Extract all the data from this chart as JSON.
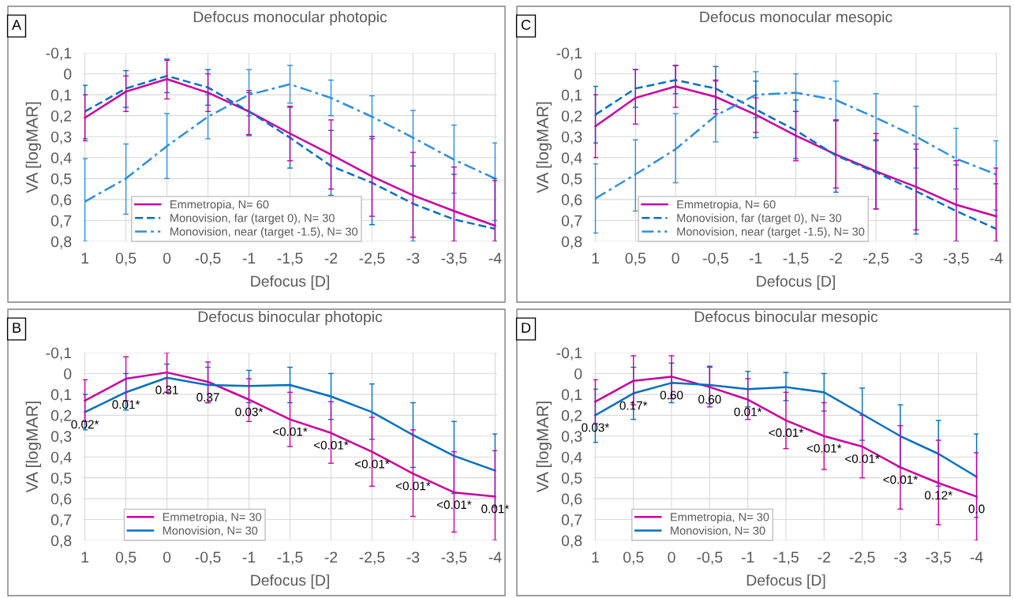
{
  "chart_data": [
    {
      "type": "line",
      "title": "Defocus monocular photopic",
      "xlabel": "Defocus [D]",
      "ylabel": "VA [logMAR]",
      "annotations": [
        "A"
      ],
      "categories": [
        "1",
        "0,5",
        "0",
        "-0,5",
        "-1",
        "-1,5",
        "-2",
        "-2,5",
        "-3",
        "-3,5",
        "-4"
      ],
      "ylim": [
        0.8,
        -0.1
      ],
      "yticks": [
        {
          "value": -0.1,
          "label": "-0,1"
        },
        {
          "value": 0,
          "label": "0"
        },
        {
          "value": 0.1,
          "label": "0,1"
        },
        {
          "value": 0.2,
          "label": "0,2"
        },
        {
          "value": 0.3,
          "label": "0,3"
        },
        {
          "value": 0.4,
          "label": "0,4"
        },
        {
          "value": 0.5,
          "label": "0,5"
        },
        {
          "value": 0.6,
          "label": "0,6"
        },
        {
          "value": 0.7,
          "label": "0,7"
        },
        {
          "value": 0.8,
          "label": "0,8"
        }
      ],
      "grid": true,
      "legend": "bottom",
      "series": [
        {
          "name": "Emmetropia, N= 60",
          "color": "#c800a0",
          "line_style": "solid",
          "values": [
            0.21,
            0.085,
            0.025,
            0.09,
            0.18,
            0.285,
            0.385,
            0.49,
            0.58,
            0.655,
            0.725
          ],
          "errors": [
            [
              0.1,
              0.32
            ],
            [
              0.01,
              0.18
            ],
            [
              -0.065,
              0.12
            ],
            [
              0.0,
              0.18
            ],
            [
              0.08,
              0.29
            ],
            [
              0.155,
              0.415
            ],
            [
              0.22,
              0.55
            ],
            [
              0.3,
              0.68
            ],
            [
              0.375,
              0.78
            ],
            [
              0.445,
              0.8
            ],
            [
              0.51,
              0.8
            ]
          ]
        },
        {
          "name": "Monovision, far (target 0), N= 30",
          "color": "#0070c0",
          "line_style": "dashed",
          "values": [
            0.18,
            0.07,
            0.01,
            0.065,
            0.18,
            0.305,
            0.44,
            0.52,
            0.62,
            0.695,
            0.74
          ],
          "errors": [
            [
              0.055,
              0.31
            ],
            [
              -0.015,
              0.16
            ],
            [
              -0.07,
              0.09
            ],
            [
              -0.02,
              0.15
            ],
            [
              0.09,
              0.295
            ],
            [
              0.16,
              0.45
            ],
            [
              0.27,
              0.58
            ],
            [
              0.31,
              0.72
            ],
            [
              0.44,
              0.8
            ],
            [
              0.48,
              0.8
            ],
            [
              0.5,
              0.8
            ]
          ]
        },
        {
          "name": "Monovision, near (target -1.5), N= 30",
          "color": "#2f8fdc",
          "line_style": "dashdot",
          "values": [
            0.61,
            0.5,
            0.345,
            0.205,
            0.1,
            0.05,
            0.115,
            0.205,
            0.305,
            0.41,
            0.5
          ],
          "errors": [
            [
              0.405,
              0.8
            ],
            [
              0.335,
              0.67
            ],
            [
              0.19,
              0.5
            ],
            [
              0.1,
              0.31
            ],
            [
              -0.02,
              0.2
            ],
            [
              -0.04,
              0.14
            ],
            [
              0.03,
              0.2
            ],
            [
              0.105,
              0.3
            ],
            [
              0.175,
              0.44
            ],
            [
              0.245,
              0.57
            ],
            [
              0.33,
              0.7
            ]
          ]
        }
      ]
    },
    {
      "type": "line",
      "title": "Defocus monocular mesopic",
      "xlabel": "Defocus [D]",
      "ylabel": "VA [logMAR]",
      "annotations": [
        "C"
      ],
      "categories": [
        "1",
        "0,5",
        "0",
        "-0,5",
        "-1",
        "-1,5",
        "-2",
        "-2,5",
        "-3",
        "-3,5",
        "-4"
      ],
      "ylim": [
        0.8,
        -0.1
      ],
      "yticks": [
        {
          "value": -0.1,
          "label": "-0,1"
        },
        {
          "value": 0,
          "label": "0"
        },
        {
          "value": 0.1,
          "label": "0,1"
        },
        {
          "value": 0.2,
          "label": "0,2"
        },
        {
          "value": 0.3,
          "label": "0,3"
        },
        {
          "value": 0.4,
          "label": "0,4"
        },
        {
          "value": 0.5,
          "label": "0,5"
        },
        {
          "value": 0.6,
          "label": "0,6"
        },
        {
          "value": 0.7,
          "label": "0,7"
        },
        {
          "value": 0.8,
          "label": "0,8"
        }
      ],
      "grid": true,
      "legend": "bottom",
      "series": [
        {
          "name": "Emmetropia, N= 60",
          "color": "#c800a0",
          "line_style": "solid",
          "values": [
            0.25,
            0.115,
            0.06,
            0.11,
            0.195,
            0.295,
            0.385,
            0.465,
            0.54,
            0.625,
            0.68
          ],
          "errors": [
            [
              0.1,
              0.4
            ],
            [
              -0.02,
              0.24
            ],
            [
              -0.04,
              0.16
            ],
            [
              0.03,
              0.19
            ],
            [
              0.115,
              0.28
            ],
            [
              0.18,
              0.415
            ],
            [
              0.22,
              0.545
            ],
            [
              0.285,
              0.645
            ],
            [
              0.335,
              0.745
            ],
            [
              0.415,
              0.8
            ],
            [
              0.45,
              0.8
            ]
          ]
        },
        {
          "name": "Monovision, far (target 0), N= 30",
          "color": "#0070c0",
          "line_style": "dashed",
          "values": [
            0.195,
            0.07,
            0.03,
            0.07,
            0.17,
            0.27,
            0.39,
            0.47,
            0.56,
            0.655,
            0.74
          ],
          "errors": [
            [
              0.06,
              0.33
            ],
            [
              -0.02,
              0.16
            ],
            [
              -0.04,
              0.095
            ],
            [
              -0.035,
              0.17
            ],
            [
              0.035,
              0.305
            ],
            [
              0.125,
              0.405
            ],
            [
              0.225,
              0.565
            ],
            [
              0.315,
              0.645
            ],
            [
              0.36,
              0.765
            ],
            [
              0.435,
              0.8
            ],
            [
              0.525,
              0.8
            ]
          ]
        },
        {
          "name": "Monovision, near (target -1.5), N= 30",
          "color": "#2f8fdc",
          "line_style": "dashdot",
          "values": [
            0.595,
            0.48,
            0.36,
            0.2,
            0.1,
            0.09,
            0.125,
            0.21,
            0.3,
            0.405,
            0.48
          ],
          "errors": [
            [
              0.43,
              0.76
            ],
            [
              0.315,
              0.655
            ],
            [
              0.19,
              0.52
            ],
            [
              0.035,
              0.325
            ],
            [
              -0.01,
              0.21
            ],
            [
              0.0,
              0.18
            ],
            [
              0.035,
              0.22
            ],
            [
              0.095,
              0.32
            ],
            [
              0.155,
              0.45
            ],
            [
              0.26,
              0.55
            ],
            [
              0.32,
              0.65
            ]
          ]
        }
      ]
    },
    {
      "type": "line",
      "title": "Defocus binocular photopic",
      "xlabel": "Defocus [D]",
      "ylabel": "VA [logMAR]",
      "annotations": [
        "B",
        {
          "text": "0.02*",
          "x": "1"
        },
        {
          "text": "0.01*",
          "x": "0,5"
        },
        {
          "text": "0.31",
          "x": "0"
        },
        {
          "text": "0.37",
          "x": "-0,5"
        },
        {
          "text": "0.03*",
          "x": "-1"
        },
        {
          "text": "<0.01*",
          "x": "-1,5"
        },
        {
          "text": "<0.01*",
          "x": "-2"
        },
        {
          "text": "<0.01*",
          "x": "-2,5"
        },
        {
          "text": "<0.01*",
          "x": "-3"
        },
        {
          "text": "<0.01*",
          "x": "-3,5"
        },
        {
          "text": "0.01*",
          "x": "-4"
        }
      ],
      "categories": [
        "1",
        "0,5",
        "0",
        "-0,5",
        "-1",
        "-1,5",
        "-2",
        "-2,5",
        "-3",
        "-3,5",
        "-4"
      ],
      "ylim": [
        0.8,
        -0.1
      ],
      "yticks": [
        {
          "value": -0.1,
          "label": "-0,1"
        },
        {
          "value": 0,
          "label": "0"
        },
        {
          "value": 0.1,
          "label": "0,1"
        },
        {
          "value": 0.2,
          "label": "0,2"
        },
        {
          "value": 0.3,
          "label": "0,3"
        },
        {
          "value": 0.4,
          "label": "0,4"
        },
        {
          "value": 0.5,
          "label": "0,5"
        },
        {
          "value": 0.6,
          "label": "0,6"
        },
        {
          "value": 0.7,
          "label": "0,7"
        },
        {
          "value": 0.8,
          "label": "0,8"
        }
      ],
      "grid": true,
      "legend": "bottom left",
      "series": [
        {
          "name": "Emmetropia, N= 30",
          "color": "#c800a0",
          "line_style": "solid",
          "values": [
            0.13,
            0.025,
            -0.005,
            0.04,
            0.125,
            0.22,
            0.285,
            0.375,
            0.48,
            0.57,
            0.59
          ],
          "errors": [
            [
              0.03,
              0.23
            ],
            [
              -0.08,
              0.13
            ],
            [
              -0.1,
              0.09
            ],
            [
              -0.055,
              0.14
            ],
            [
              0.025,
              0.23
            ],
            [
              0.09,
              0.35
            ],
            [
              0.135,
              0.43
            ],
            [
              0.21,
              0.54
            ],
            [
              0.27,
              0.685
            ],
            [
              0.375,
              0.76
            ],
            [
              0.37,
              0.8
            ]
          ]
        },
        {
          "name": "Monovision, N= 30",
          "color": "#0070c0",
          "line_style": "solid",
          "values": [
            0.185,
            0.09,
            0.02,
            0.055,
            0.06,
            0.055,
            0.11,
            0.185,
            0.295,
            0.395,
            0.465
          ],
          "errors": [
            [
              0.1,
              0.27
            ],
            [
              0.0,
              0.175
            ],
            [
              -0.045,
              0.09
            ],
            [
              -0.03,
              0.14
            ],
            [
              -0.015,
              0.14
            ],
            [
              -0.03,
              0.14
            ],
            [
              0.0,
              0.22
            ],
            [
              0.05,
              0.315
            ],
            [
              0.14,
              0.45
            ],
            [
              0.23,
              0.575
            ],
            [
              0.29,
              0.64
            ]
          ]
        }
      ]
    },
    {
      "type": "line",
      "title": "Defocus binocular mesopic",
      "xlabel": "Defocus [D]",
      "ylabel": "VA [logMAR]",
      "annotations": [
        "D",
        {
          "text": "0.03*",
          "x": "1"
        },
        {
          "text": "0.17*",
          "x": "0,5"
        },
        {
          "text": "0.60",
          "x": "0"
        },
        {
          "text": "0.60",
          "x": "-0,5"
        },
        {
          "text": "0.01*",
          "x": "-1"
        },
        {
          "text": "<0.01*",
          "x": "-1,5"
        },
        {
          "text": "<0.01*",
          "x": "-2"
        },
        {
          "text": "<0.01*",
          "x": "-2,5"
        },
        {
          "text": "<0.01*",
          "x": "-3"
        },
        {
          "text": "0.12*",
          "x": "-3,5"
        },
        {
          "text": "0.0",
          "x": "-4"
        }
      ],
      "categories": [
        "1",
        "0,5",
        "0",
        "-0,5",
        "-1",
        "-1,5",
        "-2",
        "-2,5",
        "-3",
        "-3,5",
        "-4"
      ],
      "ylim": [
        0.8,
        -0.1
      ],
      "yticks": [
        {
          "value": -0.1,
          "label": "-0,1"
        },
        {
          "value": 0,
          "label": "0"
        },
        {
          "value": 0.1,
          "label": "0,1"
        },
        {
          "value": 0.2,
          "label": "0,2"
        },
        {
          "value": 0.3,
          "label": "0,3"
        },
        {
          "value": 0.4,
          "label": "0,4"
        },
        {
          "value": 0.5,
          "label": "0,5"
        },
        {
          "value": 0.6,
          "label": "0,6"
        },
        {
          "value": 0.7,
          "label": "0,7"
        },
        {
          "value": 0.8,
          "label": "0,8"
        }
      ],
      "grid": true,
      "legend": "bottom left",
      "series": [
        {
          "name": "Emmetropia, N= 30",
          "color": "#c800a0",
          "line_style": "solid",
          "values": [
            0.135,
            0.035,
            0.015,
            0.065,
            0.125,
            0.225,
            0.3,
            0.35,
            0.45,
            0.525,
            0.59
          ],
          "errors": [
            [
              0.03,
              0.24
            ],
            [
              -0.085,
              0.15
            ],
            [
              -0.085,
              0.12
            ],
            [
              -0.03,
              0.16
            ],
            [
              0.025,
              0.22
            ],
            [
              0.09,
              0.36
            ],
            [
              0.14,
              0.46
            ],
            [
              0.2,
              0.5
            ],
            [
              0.25,
              0.65
            ],
            [
              0.32,
              0.725
            ],
            [
              0.38,
              0.8
            ]
          ]
        },
        {
          "name": "Monovision, N= 30",
          "color": "#0070c0",
          "line_style": "solid",
          "values": [
            0.2,
            0.095,
            0.045,
            0.055,
            0.075,
            0.065,
            0.09,
            0.195,
            0.3,
            0.385,
            0.495
          ],
          "errors": [
            [
              0.075,
              0.33
            ],
            [
              -0.03,
              0.22
            ],
            [
              -0.05,
              0.14
            ],
            [
              -0.035,
              0.145
            ],
            [
              -0.01,
              0.16
            ],
            [
              -0.005,
              0.13
            ],
            [
              0.0,
              0.18
            ],
            [
              0.07,
              0.32
            ],
            [
              0.15,
              0.45
            ],
            [
              0.225,
              0.54
            ],
            [
              0.29,
              0.69
            ]
          ]
        }
      ]
    }
  ]
}
